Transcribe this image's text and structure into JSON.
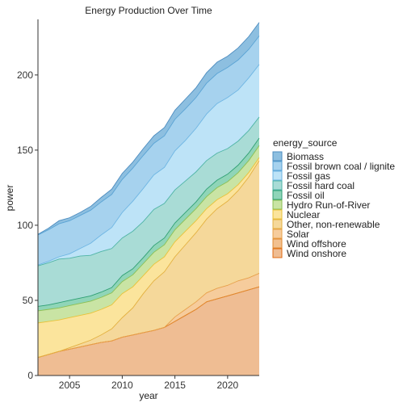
{
  "chart_data": {
    "type": "area",
    "stacked": true,
    "title": "Energy Production Over Time",
    "xlabel": "year",
    "ylabel": "power",
    "xlim": [
      2002,
      2023
    ],
    "ylim": [
      0,
      237
    ],
    "x_ticks": [
      2005,
      2010,
      2015,
      2020
    ],
    "y_ticks": [
      0,
      50,
      100,
      150,
      200
    ],
    "grid": false,
    "legend_title": "energy_source",
    "legend_position": "right",
    "x": [
      2002,
      2003,
      2004,
      2005,
      2006,
      2007,
      2008,
      2009,
      2010,
      2011,
      2012,
      2013,
      2014,
      2015,
      2016,
      2017,
      2018,
      2019,
      2020,
      2021,
      2022,
      2023
    ],
    "series": [
      {
        "name": "Biomass",
        "color": "#8dbfe0",
        "line": "#4d8cbf",
        "values": [
          0.5,
          1,
          2,
          2,
          2,
          2.5,
          3,
          3.5,
          4,
          4,
          4.5,
          5,
          5.5,
          6,
          6.5,
          6.5,
          7,
          7.5,
          7.5,
          8,
          8.5,
          9
        ]
      },
      {
        "name": "Fossil brown coal / lignite",
        "color": "#a6d2ee",
        "line": "#5aa3d4",
        "values": [
          20,
          21,
          22,
          22,
          22,
          22,
          22,
          22,
          22,
          22,
          22,
          21,
          21,
          21,
          21,
          20.5,
          20.5,
          20,
          20,
          20,
          19,
          19
        ]
      },
      {
        "name": "Fossil gas",
        "color": "#bde3f7",
        "line": "#6fb6e3",
        "values": [
          0.5,
          1,
          1.5,
          3,
          5,
          8,
          11,
          14,
          17,
          20,
          22,
          23,
          24,
          26,
          27,
          29,
          31,
          33,
          34,
          34,
          35,
          35
        ]
      },
      {
        "name": "Fossil hard coal",
        "color": "#a9dcd6",
        "line": "#4fb4a6",
        "values": [
          27,
          28,
          29,
          28,
          28,
          27,
          27,
          26,
          25,
          25,
          24,
          24,
          23,
          22,
          21,
          20,
          19,
          18,
          17,
          16,
          15,
          14
        ]
      },
      {
        "name": "Fossil oil",
        "color": "#8fd5b8",
        "line": "#2f9f74",
        "values": [
          3,
          3,
          3.5,
          3.5,
          3.5,
          3.5,
          3.5,
          3.5,
          4,
          4,
          4,
          4.5,
          4.5,
          4.5,
          4.5,
          4.5,
          5,
          5,
          5,
          5,
          5,
          5
        ]
      },
      {
        "name": "Hydro Run-of-River",
        "color": "#c9e4a4",
        "line": "#8cbf52",
        "values": [
          8,
          8,
          8,
          8,
          8,
          8,
          8,
          8,
          8,
          8,
          8,
          8,
          8,
          8,
          8,
          8,
          8,
          8,
          8,
          8,
          8,
          8
        ]
      },
      {
        "name": "Nuclear",
        "color": "#fbe49c",
        "line": "#e8c23a",
        "values": [
          23,
          22,
          21,
          20,
          19,
          18,
          17,
          16,
          16,
          14,
          12,
          11,
          10,
          10,
          9,
          8,
          7,
          6,
          5,
          4,
          3,
          2
        ]
      },
      {
        "name": "Other, non-renewable",
        "color": "#f5d89a",
        "line": "#e3b040",
        "values": [
          0,
          0,
          0,
          1,
          2,
          3,
          5,
          8,
          13,
          18,
          26,
          33,
          37,
          40,
          43,
          46,
          49,
          53,
          56,
          60,
          67,
          75
        ]
      },
      {
        "name": "Solar",
        "color": "#f6cc9c",
        "line": "#e7a04a",
        "values": [
          0,
          0,
          0,
          0,
          0,
          0,
          0,
          0,
          0,
          0,
          0,
          0,
          0,
          3,
          4,
          5,
          6,
          7,
          7,
          8,
          8,
          9
        ]
      },
      {
        "name": "Wind offshore",
        "color": "#f2c08f",
        "line": "#e08a30",
        "values": [
          0,
          0,
          0,
          0,
          0,
          0,
          0,
          0,
          0,
          0,
          0,
          0,
          0,
          0,
          0,
          0,
          0,
          0,
          0,
          0,
          0,
          0
        ]
      },
      {
        "name": "Wind onshore",
        "color": "#efbd93",
        "line": "#e06a10",
        "values": [
          12,
          14,
          16,
          17.5,
          19,
          20.5,
          22,
          23,
          25.5,
          27,
          28.5,
          30,
          32,
          36,
          40,
          44,
          49,
          51,
          53,
          55,
          57,
          59
        ]
      }
    ]
  }
}
